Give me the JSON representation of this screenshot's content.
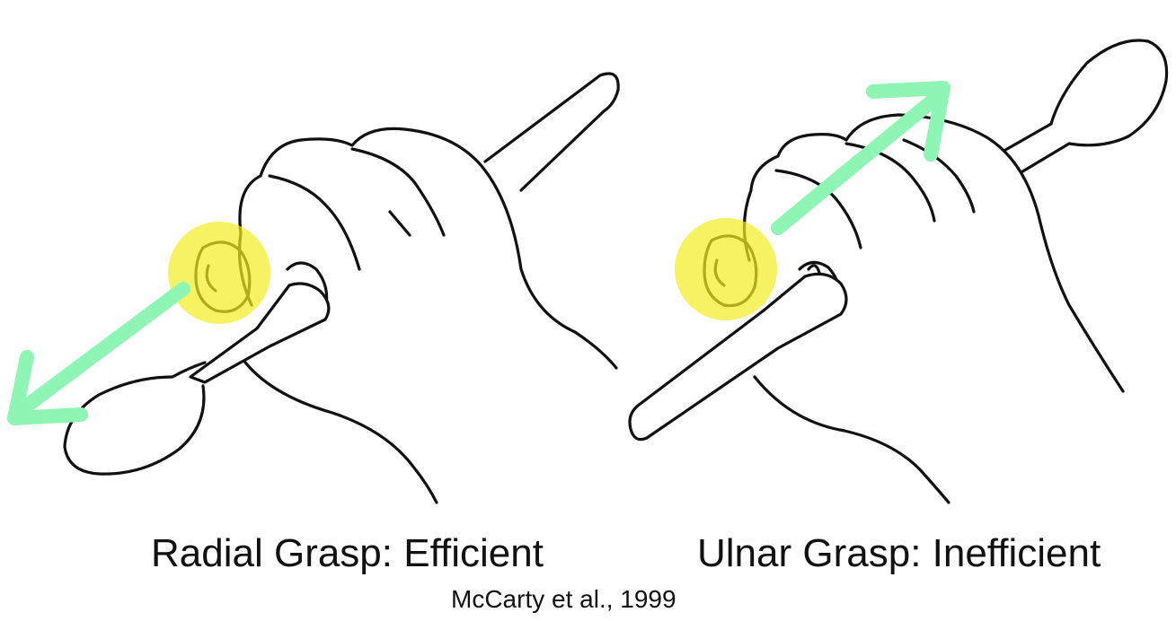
{
  "panels": [
    {
      "caption": "Radial Grasp: Efficient",
      "icons": [
        "hand-holding-spoon-icon",
        "thumb-highlight-icon",
        "direction-arrow-icon"
      ],
      "colors": {
        "highlight": "#f1ee22",
        "arrow": "#8ff5b4"
      }
    },
    {
      "caption": "Ulnar Grasp: Inefficient",
      "icons": [
        "hand-holding-spoon-icon",
        "thumb-highlight-icon",
        "direction-arrow-icon"
      ],
      "colors": {
        "highlight": "#f1ee22",
        "arrow": "#8ff5b4"
      }
    }
  ],
  "citation": "McCarty et al., 1999"
}
